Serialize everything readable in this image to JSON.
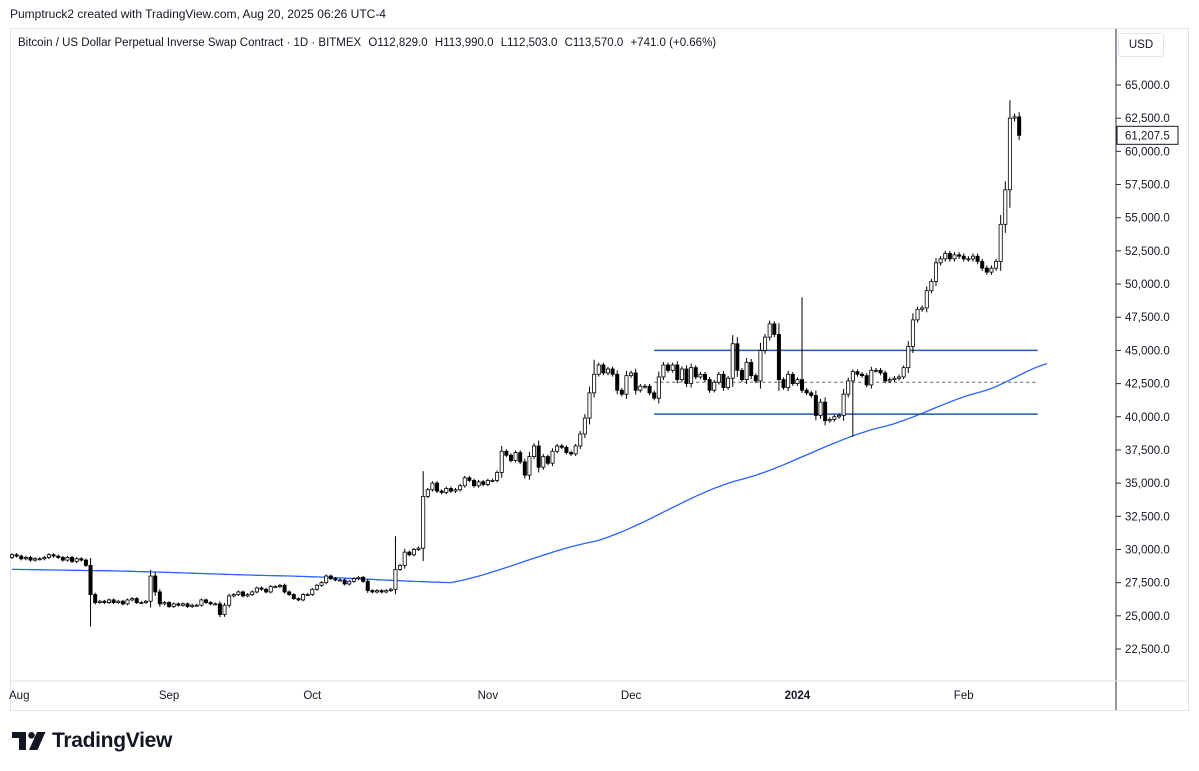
{
  "header": {
    "attribution": "Pumptruck2 created with TradingView.com, Aug 20, 2025 06:26 UTC-4"
  },
  "legend": {
    "symbol": "Bitcoin / US Dollar Perpetual Inverse Swap Contract · 1D · BITMEX",
    "open": "O112,829.0",
    "high": "H113,990.0",
    "low": "L112,503.0",
    "close": "C113,570.0",
    "change": "+741.0 (+0.66%)"
  },
  "currency": "USD",
  "brand": {
    "name": "TradingView"
  },
  "colors": {
    "candle_up_fill": "#ffffff",
    "candle_down_fill": "#000000",
    "candle_outline": "#000000",
    "moving_average": "#2962ff",
    "range_box_lines": "#1e5aa8",
    "grid_border": "#e0e3eb"
  },
  "chart_data": {
    "type": "candlestick",
    "price_axis_ticks": [
      "22,500.0",
      "25,000.0",
      "27,500.0",
      "30,000.0",
      "32,500.0",
      "35,000.0",
      "37,500.0",
      "40,000.0",
      "42,500.0",
      "45,000.0",
      "47,500.0",
      "50,000.0",
      "52,500.0",
      "55,000.0",
      "57,500.0",
      "60,000.0",
      "62,500.0",
      "65,000.0"
    ],
    "price_axis_range": [
      20000,
      67500
    ],
    "time_axis_labels": [
      {
        "label": "Aug",
        "bold": false
      },
      {
        "label": "Sep",
        "bold": false
      },
      {
        "label": "Oct",
        "bold": false
      },
      {
        "label": "Nov",
        "bold": false
      },
      {
        "label": "Dec",
        "bold": false
      },
      {
        "label": "2024",
        "bold": true
      },
      {
        "label": "Feb",
        "bold": false
      }
    ],
    "last_price_label": "61,207.5",
    "close_series_approx": [
      29600,
      29500,
      29300,
      29400,
      29200,
      29300,
      29300,
      29400,
      29600,
      29500,
      29400,
      29200,
      29400,
      29100,
      29300,
      29200,
      28800,
      26600,
      26000,
      26100,
      26000,
      26200,
      26000,
      26100,
      25900,
      26200,
      26300,
      26000,
      26000,
      26100,
      28000,
      26800,
      25900,
      26000,
      25700,
      25900,
      25800,
      25900,
      25700,
      25800,
      25800,
      26200,
      26000,
      25900,
      25900,
      25100,
      25800,
      26500,
      26600,
      26800,
      26500,
      26600,
      26800,
      27100,
      27000,
      26800,
      27200,
      27200,
      27300,
      26800,
      26600,
      26300,
      26200,
      26600,
      26600,
      27000,
      27300,
      27500,
      28000,
      27800,
      27700,
      27700,
      27400,
      27600,
      27800,
      27900,
      27600,
      26900,
      26800,
      26900,
      26800,
      26900,
      27000,
      28500,
      28800,
      29800,
      29600,
      30000,
      30100,
      34000,
      34500,
      35000,
      34400,
      34300,
      34600,
      34400,
      34500,
      34800,
      35400,
      35200,
      34800,
      35100,
      34900,
      35200,
      35200,
      35800,
      37400,
      37100,
      36700,
      37300,
      36600,
      35600,
      37000,
      37800,
      36200,
      37000,
      36500,
      37400,
      37800,
      37700,
      37300,
      37200,
      37800,
      38700,
      39900,
      41800,
      43200,
      43900,
      43300,
      43600,
      43200,
      42000,
      41700,
      43100,
      43300,
      42000,
      42300,
      42300,
      41800,
      41400,
      43000,
      43900,
      43500,
      43900,
      42800,
      43600,
      42500,
      43700,
      43000,
      43200,
      42800,
      42000,
      42600,
      43200,
      42200,
      42900,
      45500,
      43500,
      42800,
      44100,
      43100,
      42700,
      45000,
      46000,
      47000,
      46200,
      42800,
      42200,
      43200,
      42500,
      42800,
      42000,
      41800,
      41600,
      40100,
      41100,
      39700,
      39800,
      40000,
      40100,
      41700,
      42700,
      43400,
      43200,
      43100,
      42400,
      43500,
      43500,
      43300,
      42700,
      42800,
      42900,
      43000,
      43700,
      45300,
      47300,
      48100,
      48200,
      49500,
      50200,
      51600,
      51900,
      52300,
      51900,
      52200,
      52100,
      51900,
      51900,
      52100,
      51700,
      51200,
      50900,
      51200,
      51700,
      54500,
      57100,
      62500,
      62600,
      61207.5
    ],
    "series": [
      {
        "name": "",
        "type": "moving_average",
        "values_approx": [
          {
            "day": 0,
            "price": 28500
          },
          {
            "day": 20,
            "price": 28400
          },
          {
            "day": 60,
            "price": 28000
          },
          {
            "day": 95,
            "price": 27500
          },
          {
            "day": 126,
            "price": 30600
          },
          {
            "day": 157,
            "price": 35200
          },
          {
            "day": 188,
            "price": 39200
          },
          {
            "day": 210,
            "price": 41900
          },
          {
            "day": 224,
            "price": 44000
          }
        ]
      }
    ],
    "annotations": {
      "range_box_top": 45000,
      "range_box_bottom": 40200,
      "range_box_mid_dashed": 42600
    }
  }
}
